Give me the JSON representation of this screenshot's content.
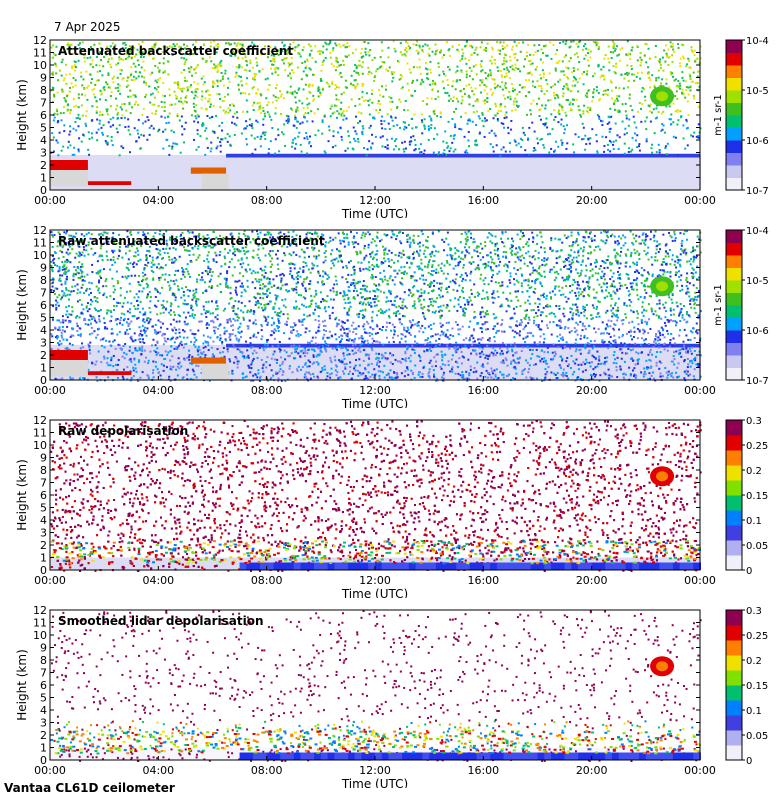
{
  "header": {
    "date": "7 Apr 2025"
  },
  "footer": {
    "instrument": "Vantaa CL61D ceilometer"
  },
  "colors": {
    "backscatter": [
      "#f0f0f8",
      "#c8c8f0",
      "#8080f0",
      "#2030e8",
      "#00a0ff",
      "#00c070",
      "#40c020",
      "#a0e000",
      "#f0e000",
      "#ff8000",
      "#e00000",
      "#900050"
    ],
    "depol": [
      "#f0f0f8",
      "#b0b0f0",
      "#4040e0",
      "#0080ff",
      "#00c070",
      "#80e000",
      "#f0e000",
      "#ff8000",
      "#e00000",
      "#900050"
    ]
  },
  "chart_data": [
    {
      "type": "heatmap",
      "title": "Attenuated backscatter coefficient",
      "xlabel": "Time (UTC)",
      "ylabel": "Height (km)",
      "x_ticks": [
        "00:00",
        "04:00",
        "08:00",
        "12:00",
        "16:00",
        "20:00",
        "00:00"
      ],
      "xlim_hours": [
        0,
        24
      ],
      "ylim": [
        0,
        12
      ],
      "y_ticks": [
        0,
        1,
        2,
        3,
        4,
        5,
        6,
        7,
        8,
        9,
        10,
        11,
        12
      ],
      "colorbar": {
        "scale": "log",
        "range": [
          1e-07,
          0.0001
        ],
        "ticks": [
          "10-7",
          "10-6",
          "10-5",
          "10-4"
        ],
        "unit": "m-1 sr-1"
      },
      "features": {
        "boundary_layer_top_km": 2.8,
        "cloud_patch": {
          "hour": 22.5,
          "height_km": 7.3,
          "level": "1e-5"
        },
        "low_clouds": [
          {
            "start_hour": 0.2,
            "end_hour": 3.0,
            "height_km": 0.6
          },
          {
            "start_hour": 5.2,
            "end_hour": 6.6,
            "height_km": 1.5
          }
        ]
      }
    },
    {
      "type": "heatmap",
      "title": "Raw attenuated backscatter coefficient",
      "xlabel": "Time (UTC)",
      "ylabel": "Height (km)",
      "x_ticks": [
        "00:00",
        "04:00",
        "08:00",
        "12:00",
        "16:00",
        "20:00",
        "00:00"
      ],
      "xlim_hours": [
        0,
        24
      ],
      "ylim": [
        0,
        12
      ],
      "y_ticks": [
        0,
        1,
        2,
        3,
        4,
        5,
        6,
        7,
        8,
        9,
        10,
        11,
        12
      ],
      "colorbar": {
        "scale": "log",
        "range": [
          1e-07,
          0.0001
        ],
        "ticks": [
          "10-7",
          "10-6",
          "10-5",
          "10-4"
        ],
        "unit": "m-1 sr-1"
      }
    },
    {
      "type": "heatmap",
      "title": "Raw depolarisation",
      "xlabel": "Time (UTC)",
      "ylabel": "Height (km)",
      "x_ticks": [
        "00:00",
        "04:00",
        "08:00",
        "12:00",
        "16:00",
        "20:00",
        "00:00"
      ],
      "xlim_hours": [
        0,
        24
      ],
      "ylim": [
        0,
        12
      ],
      "y_ticks": [
        0,
        1,
        2,
        3,
        4,
        5,
        6,
        7,
        8,
        9,
        10,
        11,
        12
      ],
      "colorbar": {
        "scale": "linear",
        "range": [
          0,
          0.3
        ],
        "ticks": [
          "0",
          "0.05",
          "0.1",
          "0.15",
          "0.2",
          "0.25",
          "0.3"
        ]
      }
    },
    {
      "type": "heatmap",
      "title": "Smoothed lidar depolarisation",
      "xlabel": "Time (UTC)",
      "ylabel": "Height (km)",
      "x_ticks": [
        "00:00",
        "04:00",
        "08:00",
        "12:00",
        "16:00",
        "20:00",
        "00:00"
      ],
      "xlim_hours": [
        0,
        24
      ],
      "ylim": [
        0,
        12
      ],
      "y_ticks": [
        0,
        1,
        2,
        3,
        4,
        5,
        6,
        7,
        8,
        9,
        10,
        11,
        12
      ],
      "colorbar": {
        "scale": "linear",
        "range": [
          0,
          0.3
        ],
        "ticks": [
          "0",
          "0.05",
          "0.1",
          "0.15",
          "0.2",
          "0.25",
          "0.3"
        ]
      }
    }
  ]
}
